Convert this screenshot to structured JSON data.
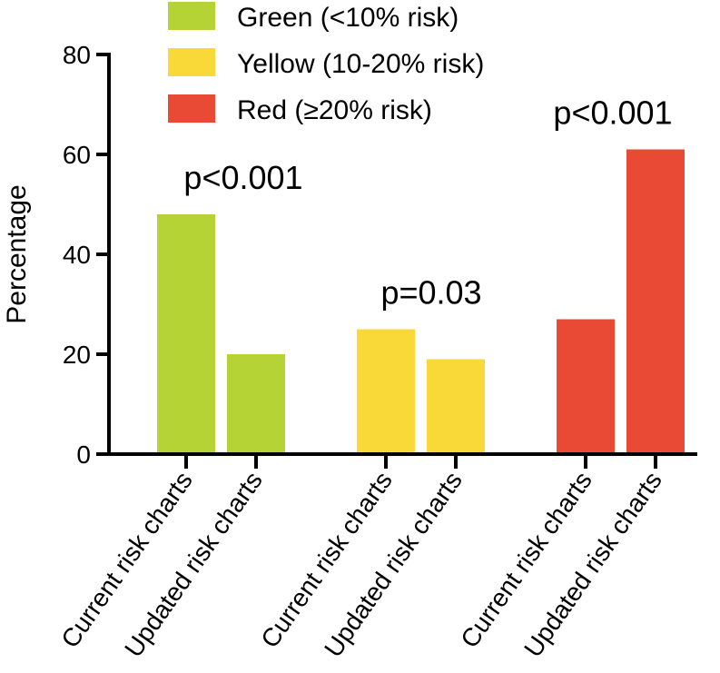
{
  "chart_data": {
    "type": "bar",
    "title": "",
    "xlabel": "",
    "ylabel": "Percentage",
    "ylim": [
      0,
      80
    ],
    "yticks": [
      0,
      20,
      40,
      60,
      80
    ],
    "grid": false,
    "legend_position": "top",
    "groups": [
      {
        "name": "Green (<10% risk)",
        "color": "#b5d334",
        "bars": [
          {
            "category": "Current risk charts",
            "value": 48
          },
          {
            "category": "Updated risk charts",
            "value": 20
          }
        ],
        "annotation": "p<0.001"
      },
      {
        "name": "Yellow (10-20% risk)",
        "color": "#f9d937",
        "bars": [
          {
            "category": "Current risk charts",
            "value": 25
          },
          {
            "category": "Updated risk charts",
            "value": 19
          }
        ],
        "annotation": "p=0.03"
      },
      {
        "name": "Red (≥20% risk)",
        "color": "#e84a35",
        "bars": [
          {
            "category": "Current risk charts",
            "value": 27
          },
          {
            "category": "Updated risk charts",
            "value": 61
          }
        ],
        "annotation": "p<0.001"
      }
    ]
  }
}
